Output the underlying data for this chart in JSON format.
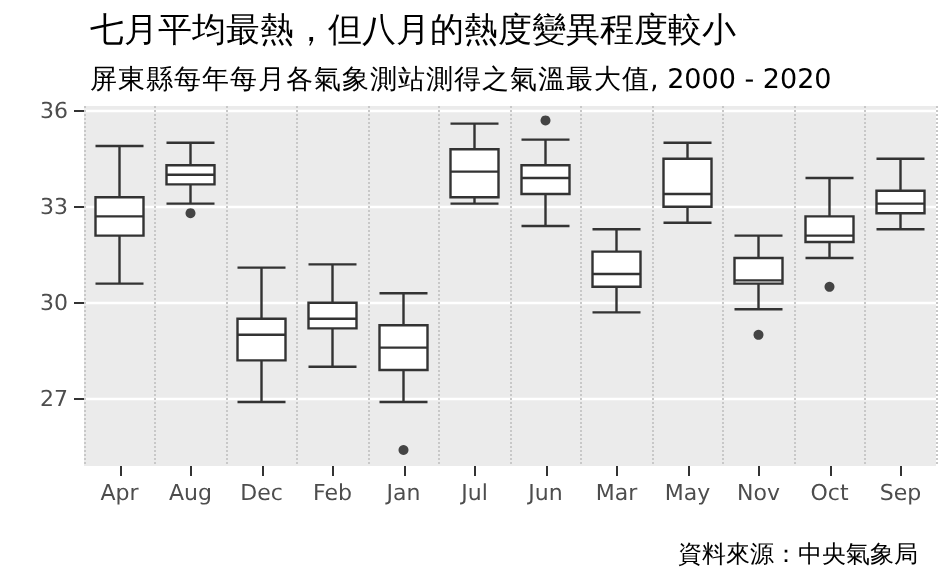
{
  "chart_data": {
    "type": "box",
    "title": "七月平均最熱，但八月的熱度變異程度較小",
    "subtitle": "屏東縣每年每月各氣象測站測得之氣溫最大值, 2000 - 2020",
    "annotations": [
      "資料來源：中央氣象局"
    ],
    "categories": [
      "Apr",
      "Aug",
      "Dec",
      "Feb",
      "Jan",
      "Jul",
      "Jun",
      "Mar",
      "May",
      "Nov",
      "Oct",
      "Sep"
    ],
    "boxes": [
      {
        "low": 30.6,
        "q1": 32.1,
        "median": 32.7,
        "q3": 33.3,
        "high": 34.9
      },
      {
        "low": 33.1,
        "q1": 33.7,
        "median": 34.0,
        "q3": 34.3,
        "high": 35.0,
        "outliers": [
          32.8
        ]
      },
      {
        "low": 26.9,
        "q1": 28.2,
        "median": 29.0,
        "q3": 29.5,
        "high": 31.1
      },
      {
        "low": 28.0,
        "q1": 29.2,
        "median": 29.5,
        "q3": 30.0,
        "high": 31.2
      },
      {
        "low": 26.9,
        "q1": 27.9,
        "median": 28.6,
        "q3": 29.3,
        "high": 30.3,
        "outliers": [
          25.4
        ]
      },
      {
        "low": 33.1,
        "q1": 33.3,
        "median": 34.1,
        "q3": 34.8,
        "high": 35.6
      },
      {
        "low": 32.4,
        "q1": 33.4,
        "median": 33.9,
        "q3": 34.3,
        "high": 35.1,
        "outliers": [
          35.7
        ]
      },
      {
        "low": 29.7,
        "q1": 30.5,
        "median": 30.9,
        "q3": 31.6,
        "high": 32.3
      },
      {
        "low": 32.5,
        "q1": 33.0,
        "median": 33.4,
        "q3": 34.5,
        "high": 35.0
      },
      {
        "low": 29.8,
        "q1": 30.6,
        "median": 30.7,
        "q3": 31.4,
        "high": 32.1,
        "outliers": [
          29.0
        ]
      },
      {
        "low": 31.4,
        "q1": 31.9,
        "median": 32.1,
        "q3": 32.7,
        "high": 33.9,
        "outliers": [
          30.5
        ]
      },
      {
        "low": 32.3,
        "q1": 32.8,
        "median": 33.1,
        "q3": 33.5,
        "high": 34.5
      }
    ],
    "ylim": [
      24.9,
      36.15
    ],
    "yticks": [
      27,
      30,
      33,
      36
    ],
    "grid": true
  }
}
